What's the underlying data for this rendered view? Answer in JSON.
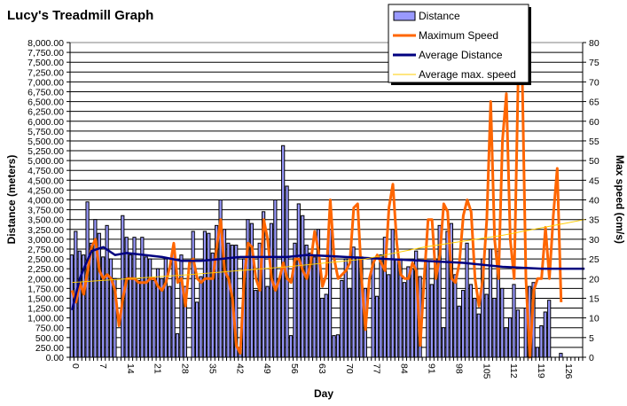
{
  "chart_data": {
    "type": "bar+line",
    "title": "Lucy's Treadmill Graph",
    "xlabel": "Day",
    "ylabel": "Distance (meters)",
    "y2label": "Max speed (cm/s)",
    "xlim": [
      0,
      131
    ],
    "ylim": [
      0,
      8000
    ],
    "y2lim": [
      0,
      80
    ],
    "xticks": [
      0,
      7,
      14,
      21,
      28,
      35,
      42,
      49,
      56,
      63,
      70,
      77,
      84,
      91,
      98,
      105,
      112,
      119,
      126
    ],
    "yticks": [
      "0.00",
      "250.00",
      "500.00",
      "750.00",
      "1,000.00",
      "1,250.00",
      "1,500.00",
      "1,750.00",
      "2,000.00",
      "2,250.00",
      "2,500.00",
      "2,750.00",
      "3,000.00",
      "3,250.00",
      "3,500.00",
      "3,750.00",
      "4,000.00",
      "4,250.00",
      "4,500.00",
      "4,750.00",
      "5,000.00",
      "5,250.00",
      "5,500.00",
      "5,750.00",
      "6,000.00",
      "6,250.00",
      "6,500.00",
      "6,750.00",
      "7,000.00",
      "7,250.00",
      "7,500.00",
      "7,750.00",
      "8,000.00"
    ],
    "y2ticks": [
      0,
      5,
      10,
      15,
      20,
      25,
      30,
      35,
      40,
      45,
      50,
      55,
      60,
      65,
      70,
      75,
      80
    ],
    "grid": true,
    "legend_placement": "top-right",
    "series": [
      {
        "name": "Distance",
        "type": "bar",
        "axis": "left",
        "color": "#9999ff",
        "values": [
          2600,
          3200,
          2700,
          2600,
          3950,
          2900,
          3500,
          3150,
          2550,
          3350,
          2500,
          2000,
          0,
          3600,
          3050,
          2600,
          3050,
          1950,
          3050,
          2550,
          2500,
          1950,
          2250,
          2000,
          2500,
          1800,
          2650,
          600,
          2600,
          1800,
          0,
          3200,
          1400,
          2050,
          3200,
          3150,
          2650,
          3350,
          4000,
          3250,
          2900,
          2850,
          2850,
          200,
          2500,
          3500,
          3400,
          1700,
          2900,
          3700,
          1800,
          3400,
          4000,
          2000,
          5380,
          4350,
          550,
          2900,
          3900,
          3600,
          2850,
          2650,
          2550,
          3250,
          1500,
          1600,
          3250,
          550,
          570,
          1950,
          2500,
          1750,
          2800,
          2550,
          2550,
          1750,
          0,
          2500,
          1550,
          2600,
          3050,
          2100,
          3250,
          2500,
          2500,
          1900,
          2300,
          2250,
          2700,
          2050,
          0,
          2450,
          1850,
          2500,
          3350,
          750,
          3200,
          3400,
          2100,
          1300,
          1700,
          2900,
          1850,
          1500,
          1100,
          2500,
          1600,
          2750,
          1500,
          2700,
          1750,
          750,
          1000,
          1850,
          1200,
          0,
          1250,
          1800,
          1900,
          250,
          800,
          1150,
          1450,
          0,
          0,
          100
        ]
      },
      {
        "name": "Maximum Speed",
        "type": "line",
        "axis": "right",
        "color": "#ff6600",
        "values": [
          17,
          14,
          19,
          16,
          22,
          28,
          30,
          22,
          20,
          21,
          20,
          17,
          8,
          15,
          20,
          20,
          20,
          19,
          19,
          19,
          20,
          20,
          18,
          17,
          19,
          23,
          29,
          19,
          20,
          13,
          24,
          25,
          20,
          19,
          20,
          20,
          20,
          28,
          35,
          22,
          20,
          15,
          3,
          1,
          20,
          29,
          28,
          20,
          17,
          35,
          30,
          20,
          17,
          20,
          24,
          20,
          19,
          25,
          25,
          22,
          20,
          24,
          32,
          27,
          18,
          21,
          40,
          25,
          20,
          21,
          22,
          24,
          38,
          39,
          20,
          7,
          20,
          24,
          26,
          24,
          22,
          38,
          44,
          29,
          21,
          20,
          20,
          24,
          22,
          3,
          20,
          35,
          35,
          20,
          26,
          39,
          37,
          20,
          19,
          24,
          36,
          40,
          37,
          20,
          13,
          20,
          35,
          65,
          30,
          20,
          55,
          67,
          30,
          20,
          70,
          75,
          20,
          0,
          17,
          20,
          20,
          33,
          20,
          36,
          48,
          14
        ]
      },
      {
        "name": "Average Distance",
        "type": "line",
        "axis": "left",
        "color": "#000080",
        "points": [
          [
            0,
            1200
          ],
          [
            2,
            2000
          ],
          [
            3,
            2250
          ],
          [
            5,
            2700
          ],
          [
            8,
            2800
          ],
          [
            11,
            2600
          ],
          [
            14,
            2650
          ],
          [
            23,
            2550
          ],
          [
            28,
            2450
          ],
          [
            33,
            2450
          ],
          [
            43,
            2550
          ],
          [
            55,
            2550
          ],
          [
            60,
            2600
          ],
          [
            70,
            2550
          ],
          [
            80,
            2500
          ],
          [
            90,
            2450
          ],
          [
            100,
            2400
          ],
          [
            110,
            2300
          ],
          [
            120,
            2250
          ],
          [
            131,
            2250
          ]
        ]
      },
      {
        "name": "Average max. speed",
        "type": "line",
        "axis": "right",
        "color": "#ffcc00",
        "points": [
          [
            0,
            19
          ],
          [
            30,
            21
          ],
          [
            55,
            23
          ],
          [
            75,
            25
          ],
          [
            90,
            28
          ],
          [
            110,
            31
          ],
          [
            131,
            35
          ]
        ]
      }
    ]
  }
}
